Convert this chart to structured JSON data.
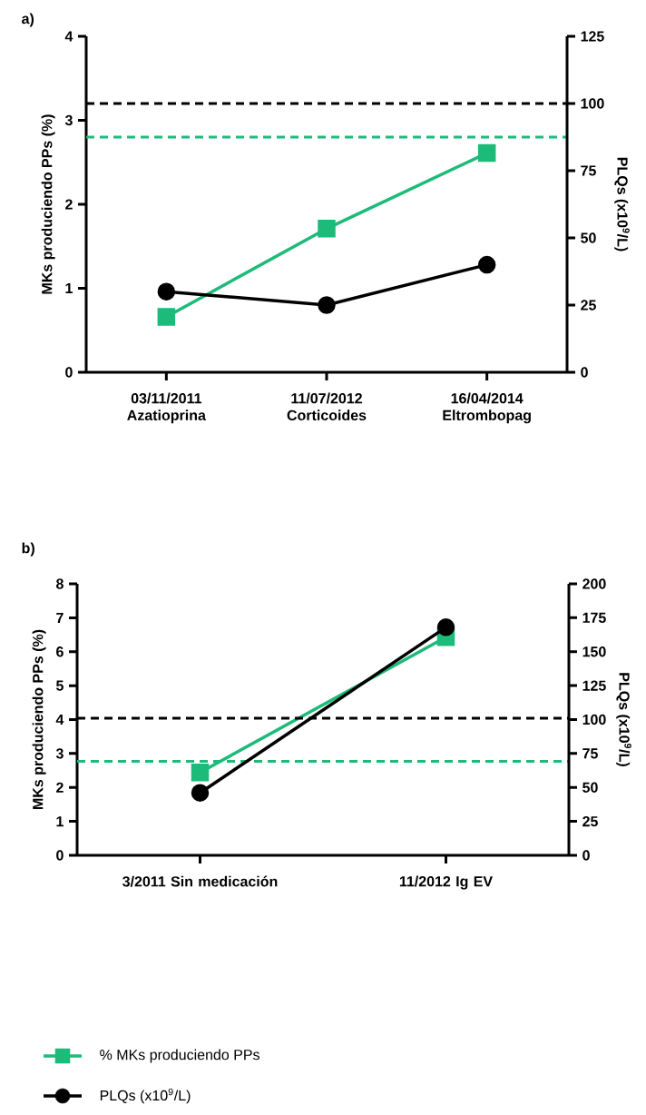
{
  "chart_data": [
    {
      "type": "line",
      "title": "a)",
      "categories": [
        "03/11/2011 Azatioprina",
        "11/07/2012 Corticoides",
        "16/04/2014 Eltrombopag"
      ],
      "ylabel": "MKs produciendo PPs (%)",
      "y2label": "PLQs (x10$^{9}$/L)",
      "ylim": [
        0,
        4
      ],
      "yticks": [
        0,
        1,
        2,
        3,
        4
      ],
      "y2lim": [
        0,
        125
      ],
      "y2ticks": [
        0,
        25,
        50,
        75,
        100,
        125
      ],
      "series": [
        {
          "color": "#1dbb7a",
          "marker": "square",
          "values": [
            0.66,
            1.71,
            2.61
          ]
        },
        {
          "color": "#000000",
          "marker": "circle",
          "axis": "y2",
          "values": [
            30,
            25,
            40
          ]
        }
      ],
      "ref_lines": [
        {
          "axis": "y2",
          "value": 100,
          "color": "#000000",
          "line_style": "dashed"
        },
        {
          "axis": "y",
          "value": 2.8,
          "color": "#1dbb7a",
          "line_style": "dashed"
        }
      ]
    },
    {
      "type": "line",
      "title": "b)",
      "categories": [
        "3/2011 Sin medicación",
        "11/2012 Ig EV"
      ],
      "ylabel": "MKs produciendo PPs (%)",
      "y2label": "PLQs (x10$^{9}$/L)",
      "ylim": [
        0,
        8
      ],
      "yticks": [
        0,
        1,
        2,
        3,
        4,
        5,
        6,
        7,
        8
      ],
      "y2lim": [
        0,
        200
      ],
      "y2ticks": [
        0,
        25,
        50,
        75,
        100,
        125,
        150,
        175,
        200
      ],
      "legend": "bottom",
      "series": [
        {
          "name": "% MKs produciendo PPs",
          "color": "#1dbb7a",
          "marker": "square",
          "values": [
            2.44,
            6.43
          ]
        },
        {
          "name": "PLQs (x10$^{9}$/L)",
          "color": "#000000",
          "marker": "circle",
          "axis": "y2",
          "values": [
            46,
            168
          ]
        }
      ],
      "ref_lines": [
        {
          "axis": "y2",
          "value": 101,
          "color": "#000000",
          "line_style": "dashed"
        },
        {
          "axis": "y",
          "value": 2.77,
          "color": "#1dbb7a",
          "line_style": "dashed"
        }
      ]
    }
  ]
}
